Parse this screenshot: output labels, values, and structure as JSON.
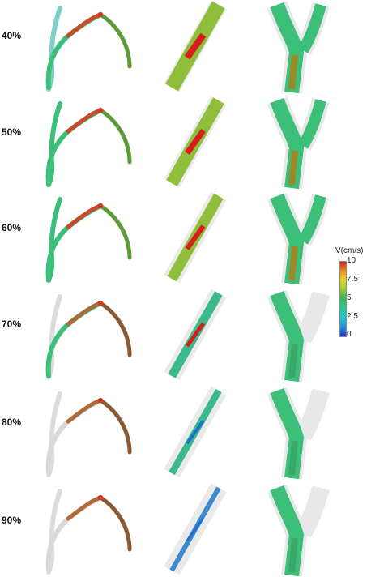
{
  "rows": [
    {
      "label": "40%"
    },
    {
      "label": "50%"
    },
    {
      "label": "60%"
    },
    {
      "label": "70%"
    },
    {
      "label": "80%"
    },
    {
      "label": "90%"
    }
  ],
  "colorbar": {
    "title": "V(cm/s)",
    "ticks": [
      "10",
      "7.5",
      "5",
      "2.5",
      "0"
    ]
  },
  "colors": {
    "high": "#d61e1e",
    "mid": "#3cb94a",
    "low": "#1a2fd0",
    "vessel_wall": "#e8e8e8"
  }
}
